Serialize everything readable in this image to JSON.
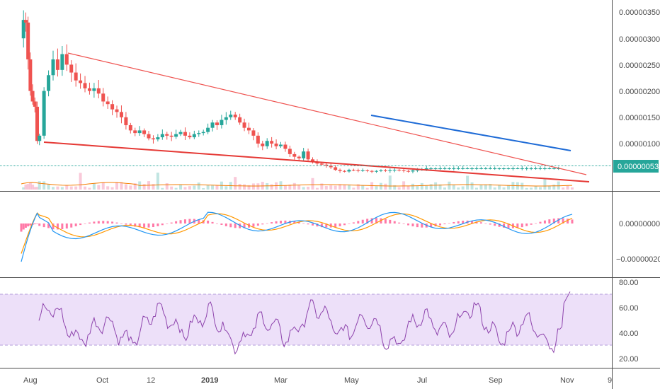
{
  "colors": {
    "candle_up": "#26a69a",
    "candle_down": "#ef5350",
    "trendline": "#ef5350",
    "support": "#e53935",
    "channel": "#1e6bd6",
    "price_line": "#26a69a",
    "volume_ma": "#f57c00",
    "macd": "#2196f3",
    "signal": "#ff9800",
    "hist": "#ff4081",
    "rsi": "#8e44ad",
    "rsi_band": "#e9d8f7"
  },
  "price_pane": {
    "y_ticks": [
      "0.00000350",
      "0.00000300",
      "0.00000250",
      "0.00000200",
      "0.00000150",
      "0.00000100"
    ],
    "last_price": "0.00000053"
  },
  "macd_pane": {
    "y_ticks": [
      "0.00000000",
      "−0.00000020"
    ]
  },
  "rsi_pane": {
    "y_ticks": [
      "80.00",
      "60.00",
      "40.00",
      "20.00"
    ]
  },
  "x_axis": {
    "labels": [
      {
        "text": "Aug",
        "bold": false
      },
      {
        "text": "Oct",
        "bold": false
      },
      {
        "text": "12",
        "bold": false
      },
      {
        "text": "2019",
        "bold": true
      },
      {
        "text": "Mar",
        "bold": false
      },
      {
        "text": "May",
        "bold": false
      },
      {
        "text": "Jul",
        "bold": false
      },
      {
        "text": "Sep",
        "bold": false
      },
      {
        "text": "Nov",
        "bold": false
      },
      {
        "text": "9",
        "bold": false
      }
    ]
  },
  "chart_data": [
    {
      "type": "line",
      "title": "",
      "series": [
        {
          "values_x_days": [
            0,
            2,
            4,
            6,
            8,
            10,
            12,
            14,
            16,
            20,
            24,
            28,
            32,
            36,
            40,
            44,
            48,
            52,
            56,
            60,
            64,
            68,
            72,
            76,
            80,
            84,
            88,
            92,
            96,
            100,
            104,
            108,
            112,
            116,
            120,
            124,
            128,
            132,
            136,
            140,
            144,
            148,
            152,
            156,
            160,
            164,
            168,
            172,
            176,
            180,
            184,
            188,
            192,
            196,
            200,
            204,
            208,
            212,
            216,
            220,
            224,
            228,
            232,
            236,
            240,
            244,
            248,
            252,
            256,
            260,
            264,
            268,
            272,
            276,
            280,
            284,
            288,
            292,
            296,
            300,
            304,
            308,
            312,
            316,
            320,
            324,
            328,
            332,
            336,
            340,
            344,
            348,
            352,
            356,
            360,
            364,
            368,
            372,
            376,
            380,
            384,
            388,
            392,
            396,
            400,
            404,
            408,
            412,
            416,
            420,
            424,
            428,
            432,
            436,
            440,
            444,
            448,
            452,
            456,
            460,
            464,
            468,
            472,
            476,
            480,
            484
          ],
          "values": [
            3e-06,
            3.35e-06,
            3.3e-06,
            2.6e-06,
            2e-06,
            1.8e-06,
            1.7e-06,
            1.05e-06,
            1.15e-06,
            2e-06,
            2.3e-06,
            2.6e-06,
            2.4e-06,
            2.7e-06,
            2.5e-06,
            2.35e-06,
            2.2e-06,
            2.15e-06,
            2.05e-06,
            2e-06,
            2.05e-06,
            1.95e-06,
            1.8e-06,
            1.75e-06,
            1.65e-06,
            1.6e-06,
            1.5e-06,
            1.35e-06,
            1.25e-06,
            1.2e-06,
            1.25e-06,
            1.18e-06,
            1.1e-06,
            1.08e-06,
            1.12e-06,
            1.18e-06,
            1.15e-06,
            1.13e-06,
            1.18e-06,
            1.22e-06,
            1.15e-06,
            1.12e-06,
            1.18e-06,
            1.2e-06,
            1.22e-06,
            1.3e-06,
            1.4e-06,
            1.35e-06,
            1.45e-06,
            1.5e-06,
            1.55e-06,
            1.5e-06,
            1.4e-06,
            1.3e-06,
            1.25e-06,
            1.15e-06,
            1e-06,
            9.5e-07,
            1.05e-06,
            1e-06,
            9.5e-07,
            9.8e-07,
            9e-07,
            8e-07,
            7.5e-07,
            7.2e-07,
            8.5e-07,
            7e-07,
            6.5e-07,
            6.2e-07,
            6e-07,
            5.8e-07,
            5.5e-07,
            5e-07,
            4.8e-07,
            4.7e-07,
            5e-07,
            4.9e-07,
            4.8e-07,
            4.9e-07,
            4.8e-07,
            4.7e-07,
            4.8e-07,
            4.9e-07,
            4.8e-07,
            4.9e-07,
            5e-07,
            4.9e-07,
            4.8e-07,
            4.7e-07,
            4.9e-07,
            5e-07,
            5.1e-07,
            5.3e-07,
            5.3e-07,
            5.3e-07,
            5.3e-07,
            5.3e-07,
            5.3e-07,
            5.3e-07,
            5.3e-07,
            5.3e-07,
            5.3e-07,
            5.3e-07,
            5.3e-07,
            5.3e-07,
            5.3e-07,
            5.3e-07,
            5.3e-07,
            5.3e-07,
            5.3e-07,
            5.3e-07,
            5.3e-07,
            5.3e-07,
            5.3e-07,
            5.3e-07,
            5.3e-07,
            5.3e-07,
            5.3e-07,
            5.3e-07,
            5.3e-07,
            5.3e-07,
            5.3e-07
          ]
        }
      ],
      "y_ticks": [
        3.5e-06,
        3e-06,
        2.5e-06,
        2e-06,
        1.5e-06,
        1e-06
      ],
      "last_price": 5.3e-07
    },
    {
      "type": "line",
      "title": "",
      "y_ticks": [
        0.0,
        -2e-07
      ]
    },
    {
      "type": "line",
      "title": "",
      "y_ticks": [
        80,
        60,
        40,
        20
      ],
      "band": [
        30,
        70
      ]
    }
  ]
}
